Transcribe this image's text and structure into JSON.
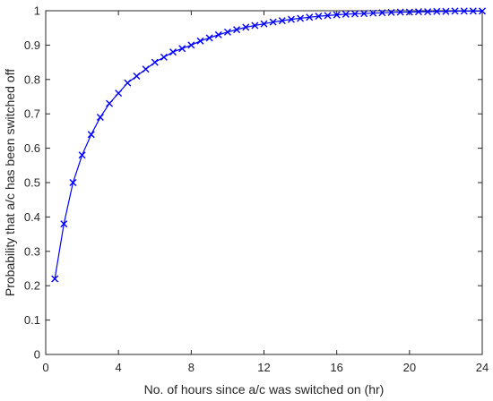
{
  "chart_data": {
    "type": "line",
    "title": "",
    "xlabel": "No. of hours since a/c was switched on (hr)",
    "ylabel": "Probability that a/c has been switched off",
    "xlim": [
      0,
      24
    ],
    "ylim": [
      0,
      1
    ],
    "xticks": [
      0,
      4,
      8,
      12,
      16,
      20,
      24
    ],
    "yticks": [
      0,
      0.1,
      0.2,
      0.3,
      0.4,
      0.5,
      0.6,
      0.7,
      0.8,
      0.9,
      1
    ],
    "grid": false,
    "marker": "x",
    "colors": {
      "series": "#0000ff",
      "axis": "#262626"
    },
    "series": [
      {
        "x": [
          0.5,
          1,
          1.5,
          2,
          2.5,
          3,
          3.5,
          4,
          4.5,
          5,
          5.5,
          6,
          6.5,
          7,
          7.5,
          8,
          8.5,
          9,
          9.5,
          10,
          10.5,
          11,
          11.5,
          12,
          12.5,
          13,
          13.5,
          14,
          14.5,
          15,
          15.5,
          16,
          16.5,
          17,
          17.5,
          18,
          18.5,
          19,
          19.5,
          20,
          20.5,
          21,
          21.5,
          22,
          22.5,
          23,
          23.5,
          24
        ],
        "values": [
          0.22,
          0.38,
          0.5,
          0.58,
          0.64,
          0.69,
          0.73,
          0.76,
          0.79,
          0.81,
          0.83,
          0.85,
          0.865,
          0.88,
          0.89,
          0.9,
          0.912,
          0.921,
          0.93,
          0.938,
          0.945,
          0.952,
          0.957,
          0.962,
          0.967,
          0.971,
          0.975,
          0.978,
          0.981,
          0.984,
          0.986,
          0.988,
          0.99,
          0.991,
          0.992,
          0.993,
          0.994,
          0.995,
          0.996,
          0.996,
          0.997,
          0.997,
          0.998,
          0.998,
          0.999,
          0.999,
          0.999,
          0.999
        ]
      }
    ]
  }
}
